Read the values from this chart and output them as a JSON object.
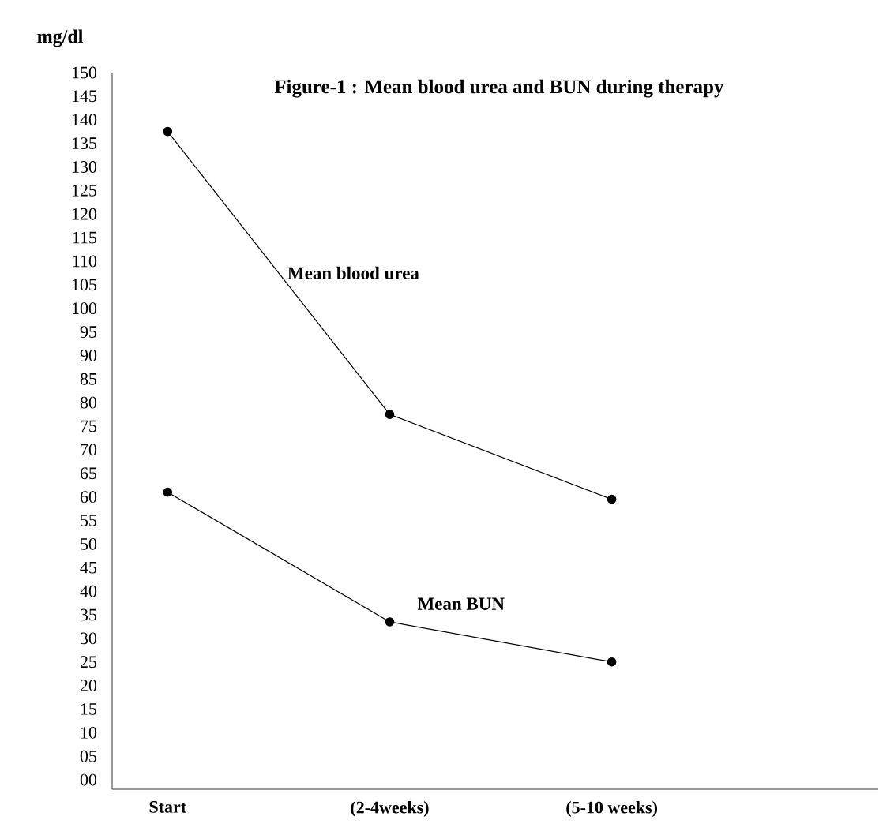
{
  "chart_data": {
    "type": "line",
    "title": "Figure-1 : Mean blood urea and BUN during therapy",
    "ylabel": "mg/dl",
    "categories": [
      "Start",
      "(2-4weeks)",
      "(5-10 weeks)"
    ],
    "series": [
      {
        "name": "Mean blood urea",
        "color": "#000000",
        "values": [
          137.5,
          77.5,
          59.5
        ]
      },
      {
        "name": "Mean BUN",
        "color": "#000000",
        "values": [
          61,
          33.5,
          25
        ]
      }
    ],
    "ylim": [
      -2,
      150
    ],
    "yticks": [
      {
        "value": 0,
        "label": "00"
      },
      {
        "value": 5,
        "label": "05"
      },
      10,
      15,
      20,
      25,
      30,
      35,
      40,
      45,
      50,
      55,
      60,
      65,
      70,
      75,
      80,
      85,
      90,
      95,
      100,
      105,
      110,
      115,
      120,
      125,
      130,
      135,
      140,
      145,
      150
    ],
    "grid": false,
    "marker": "circle",
    "line_style": "solid"
  }
}
